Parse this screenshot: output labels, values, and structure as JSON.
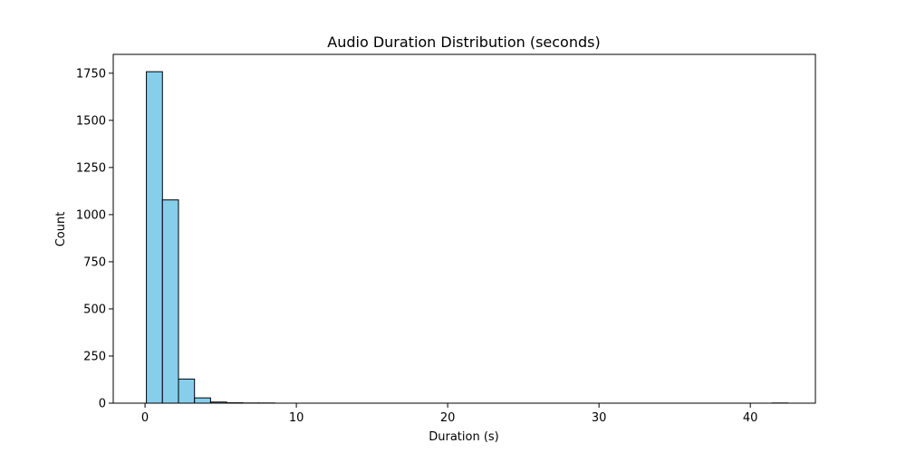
{
  "chart_data": {
    "type": "bar",
    "title": "Audio Duration Distribution (seconds)",
    "xlabel": "Duration (s)",
    "ylabel": "Count",
    "xlim": [
      -2.1,
      44.3
    ],
    "ylim": [
      0,
      1850
    ],
    "xticks": [
      0,
      10,
      20,
      30,
      40
    ],
    "yticks": [
      0,
      250,
      500,
      750,
      1000,
      1250,
      1500,
      1750
    ],
    "bin_width": 1.06,
    "bins": [
      {
        "x0": 0.09,
        "x1": 1.15,
        "count": 1758
      },
      {
        "x0": 1.15,
        "x1": 2.21,
        "count": 1078
      },
      {
        "x0": 2.21,
        "x1": 3.27,
        "count": 128
      },
      {
        "x0": 3.27,
        "x1": 4.33,
        "count": 28
      },
      {
        "x0": 4.33,
        "x1": 5.39,
        "count": 6
      },
      {
        "x0": 5.39,
        "x1": 6.45,
        "count": 2
      },
      {
        "x0": 6.45,
        "x1": 7.51,
        "count": 1
      },
      {
        "x0": 7.51,
        "x1": 8.57,
        "count": 1
      },
      {
        "x0": 8.57,
        "x1": 9.63,
        "count": 0
      },
      {
        "x0": 9.63,
        "x1": 10.69,
        "count": 0
      },
      {
        "x0": 10.69,
        "x1": 11.75,
        "count": 0
      },
      {
        "x0": 11.75,
        "x1": 12.81,
        "count": 0
      },
      {
        "x0": 12.81,
        "x1": 13.87,
        "count": 0
      },
      {
        "x0": 13.87,
        "x1": 14.93,
        "count": 0
      },
      {
        "x0": 14.93,
        "x1": 15.99,
        "count": 0
      },
      {
        "x0": 15.99,
        "x1": 17.05,
        "count": 0
      },
      {
        "x0": 17.05,
        "x1": 18.11,
        "count": 0
      },
      {
        "x0": 18.11,
        "x1": 19.17,
        "count": 0
      },
      {
        "x0": 19.17,
        "x1": 20.23,
        "count": 0
      },
      {
        "x0": 20.23,
        "x1": 21.29,
        "count": 0
      },
      {
        "x0": 21.29,
        "x1": 22.35,
        "count": 0
      },
      {
        "x0": 22.35,
        "x1": 23.41,
        "count": 0
      },
      {
        "x0": 23.41,
        "x1": 24.47,
        "count": 0
      },
      {
        "x0": 24.47,
        "x1": 25.53,
        "count": 0
      },
      {
        "x0": 25.53,
        "x1": 26.59,
        "count": 0
      },
      {
        "x0": 26.59,
        "x1": 27.65,
        "count": 0
      },
      {
        "x0": 27.65,
        "x1": 28.71,
        "count": 0
      },
      {
        "x0": 28.71,
        "x1": 29.77,
        "count": 0
      },
      {
        "x0": 29.77,
        "x1": 30.83,
        "count": 0
      },
      {
        "x0": 30.83,
        "x1": 31.89,
        "count": 0
      },
      {
        "x0": 31.89,
        "x1": 32.95,
        "count": 0
      },
      {
        "x0": 32.95,
        "x1": 34.01,
        "count": 0
      },
      {
        "x0": 34.01,
        "x1": 35.07,
        "count": 0
      },
      {
        "x0": 35.07,
        "x1": 36.13,
        "count": 0
      },
      {
        "x0": 36.13,
        "x1": 37.19,
        "count": 0
      },
      {
        "x0": 37.19,
        "x1": 38.25,
        "count": 0
      },
      {
        "x0": 38.25,
        "x1": 39.31,
        "count": 0
      },
      {
        "x0": 39.31,
        "x1": 40.37,
        "count": 0
      },
      {
        "x0": 40.37,
        "x1": 41.43,
        "count": 0
      },
      {
        "x0": 41.43,
        "x1": 42.49,
        "count": 1
      }
    ],
    "bar_color": "#87ceeb",
    "edge_color": "#000000",
    "grid": false,
    "legend": "none"
  }
}
